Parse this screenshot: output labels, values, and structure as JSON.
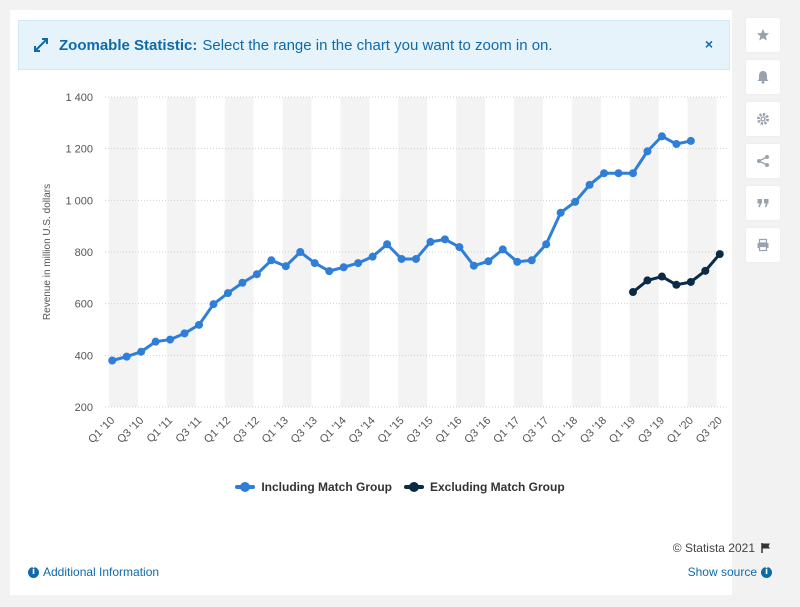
{
  "banner": {
    "title": "Zoomable Statistic:",
    "message": "Select the range in the chart you want to zoom in on.",
    "close": "×"
  },
  "sidebar": {
    "buttons": [
      {
        "name": "star-icon",
        "glyph": "★"
      },
      {
        "name": "bell-icon",
        "glyph": "🔔"
      },
      {
        "name": "gear-icon",
        "glyph": "⚙"
      },
      {
        "name": "share-icon",
        "glyph": "⋖"
      },
      {
        "name": "quote-icon",
        "glyph": "❞"
      },
      {
        "name": "print-icon",
        "glyph": "⎙"
      }
    ]
  },
  "footer": {
    "credit": "© Statista 2021",
    "additional_info": "Additional Information",
    "show_source": "Show source"
  },
  "chart_data": {
    "type": "line",
    "title": "",
    "xlabel": "",
    "ylabel": "Revenue in million U.S. dollars",
    "ylim": [
      200,
      1400
    ],
    "yticks": [
      200,
      400,
      600,
      800,
      1000,
      1200,
      1400
    ],
    "ytick_labels": [
      "200",
      "400",
      "600",
      "800",
      "1 000",
      "1 200",
      "1 400"
    ],
    "grid": true,
    "legend_position": "bottom",
    "categories": [
      "Q1 '10",
      "Q2 '10",
      "Q3 '10",
      "Q4 '10",
      "Q1 '11",
      "Q2 '11",
      "Q3 '11",
      "Q4 '11",
      "Q1 '12",
      "Q2 '12",
      "Q3 '12",
      "Q4 '12",
      "Q1 '13",
      "Q2 '13",
      "Q3 '13",
      "Q4 '13",
      "Q1 '14",
      "Q2 '14",
      "Q3 '14",
      "Q4 '14",
      "Q1 '15",
      "Q2 '15",
      "Q3 '15",
      "Q4 '15",
      "Q1 '16",
      "Q2 '16",
      "Q3 '16",
      "Q4 '16",
      "Q1 '17",
      "Q2 '17",
      "Q3 '17",
      "Q4 '17",
      "Q1 '18",
      "Q2 '18",
      "Q3 '18",
      "Q4 '18",
      "Q1 '19",
      "Q2 '19",
      "Q3 '19",
      "Q4 '19",
      "Q1 '20",
      "Q2 '20",
      "Q3 '20"
    ],
    "xtick_labels": [
      "Q1 '10",
      "Q3 '10",
      "Q1 '11",
      "Q3 '11",
      "Q1 '12",
      "Q3 '12",
      "Q1 '13",
      "Q3 '13",
      "Q1 '14",
      "Q3 '14",
      "Q1 '15",
      "Q3 '15",
      "Q1 '16",
      "Q3 '16",
      "Q1 '17",
      "Q3 '17",
      "Q1 '18",
      "Q3 '18",
      "Q1 '19",
      "Q3 '19",
      "Q1 '20",
      "Q3 '20"
    ],
    "series": [
      {
        "name": "Including Match Group",
        "color": "#2f7ed8",
        "values": [
          380,
          395,
          414,
          453,
          461,
          485,
          518,
          598,
          641,
          681,
          714,
          768,
          745,
          800,
          757,
          726,
          741,
          757,
          782,
          830,
          773,
          773,
          839,
          849,
          819,
          747,
          764,
          810,
          762,
          768,
          830,
          952,
          994,
          1060,
          1105,
          1105,
          1105,
          1190,
          1248,
          1218,
          1230,
          null,
          null
        ]
      },
      {
        "name": "Excluding Match Group",
        "color": "#0b2a45",
        "values": [
          null,
          null,
          null,
          null,
          null,
          null,
          null,
          null,
          null,
          null,
          null,
          null,
          null,
          null,
          null,
          null,
          null,
          null,
          null,
          null,
          null,
          null,
          null,
          null,
          null,
          null,
          null,
          null,
          null,
          null,
          null,
          null,
          null,
          null,
          null,
          null,
          645,
          690,
          705,
          673,
          684,
          727,
          792
        ]
      }
    ]
  }
}
